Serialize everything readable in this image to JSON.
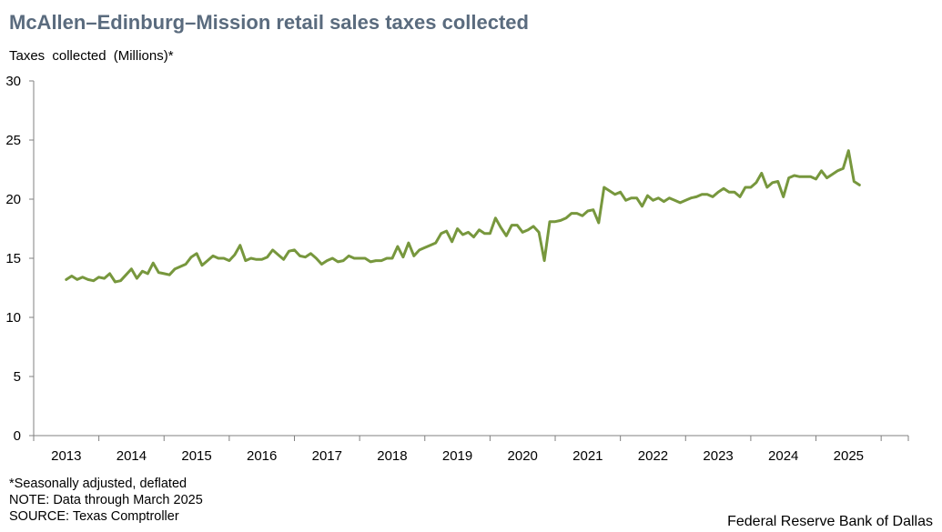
{
  "title": "McAllen–Edinburg–Mission retail sales taxes collected",
  "footnotes": {
    "line1": "*Seasonally adjusted, deflated",
    "line2": "NOTE: Data through March 2025",
    "line3": "SOURCE: Texas Comptroller"
  },
  "credit": "Federal Reserve Bank of Dallas",
  "colors": {
    "series": "#77973d",
    "axis": "#808080",
    "title": "#5a6b7e"
  },
  "chart_data": {
    "type": "line",
    "title": "McAllen–Edinburg–Mission retail sales taxes collected",
    "ylabel": "Taxes  collected  (Millions)*",
    "xlabel": "",
    "ylim": [
      0,
      30
    ],
    "yticks": [
      0,
      5,
      10,
      15,
      20,
      25,
      30
    ],
    "x_start": "2013-01",
    "x_end": "2025-03",
    "xlim": [
      "2012-07",
      "2025-12"
    ],
    "x_tick_labels": [
      "2013",
      "2014",
      "2015",
      "2016",
      "2017",
      "2018",
      "2019",
      "2020",
      "2021",
      "2022",
      "2023",
      "2024",
      "2025"
    ],
    "grid": false,
    "series": [
      {
        "values": [
          13.2,
          13.5,
          13.2,
          13.4,
          13.2,
          13.1,
          13.4,
          13.3,
          13.7,
          13.0,
          13.1,
          13.6,
          14.1,
          13.3,
          13.9,
          13.7,
          14.6,
          13.8,
          13.7,
          13.6,
          14.1,
          14.3,
          14.5,
          15.1,
          15.4,
          14.4,
          14.8,
          15.2,
          15.0,
          15.0,
          14.8,
          15.3,
          16.1,
          14.8,
          15.0,
          14.9,
          14.9,
          15.1,
          15.7,
          15.3,
          14.9,
          15.6,
          15.7,
          15.2,
          15.1,
          15.4,
          15.0,
          14.5,
          14.8,
          15.0,
          14.7,
          14.8,
          15.2,
          15.0,
          15.0,
          15.0,
          14.7,
          14.8,
          14.8,
          15.0,
          15.0,
          16.0,
          15.1,
          16.3,
          15.2,
          15.7,
          15.9,
          16.1,
          16.3,
          17.1,
          17.3,
          16.4,
          17.5,
          17.0,
          17.2,
          16.8,
          17.4,
          17.1,
          17.1,
          18.4,
          17.6,
          16.9,
          17.8,
          17.8,
          17.2,
          17.4,
          17.7,
          17.2,
          14.8,
          18.1,
          18.1,
          18.2,
          18.4,
          18.8,
          18.8,
          18.6,
          19.0,
          19.1,
          18.0,
          21.0,
          20.7,
          20.4,
          20.6,
          19.9,
          20.1,
          20.1,
          19.4,
          20.3,
          19.9,
          20.1,
          19.8,
          20.1,
          19.9,
          19.7,
          19.9,
          20.1,
          20.2,
          20.4,
          20.4,
          20.2,
          20.6,
          20.9,
          20.6,
          20.6,
          20.2,
          21.0,
          21.0,
          21.4,
          22.2,
          21.0,
          21.4,
          21.5,
          20.2,
          21.8,
          22.0,
          21.9,
          21.9,
          21.9,
          21.7,
          22.4,
          21.8,
          22.1,
          22.4,
          22.6,
          24.1,
          21.5,
          21.2
        ]
      }
    ]
  }
}
